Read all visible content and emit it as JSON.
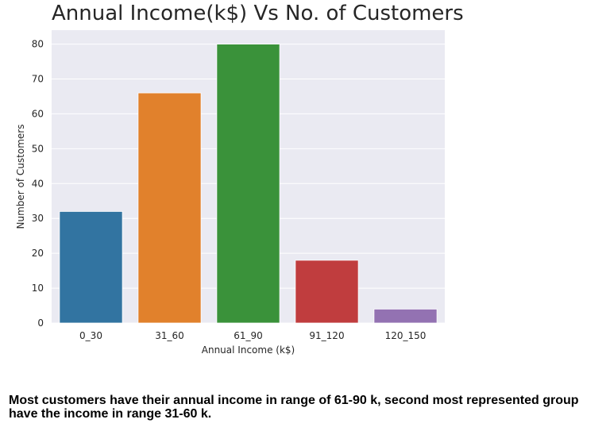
{
  "chart_data": {
    "type": "bar",
    "title": "Annual Income(k$) Vs No. of Customers",
    "xlabel": "Annual Income (k$)",
    "ylabel": "Number of Customers",
    "categories": [
      "0_30",
      "31_60",
      "61_90",
      "91_120",
      "120_150"
    ],
    "values": [
      32,
      66,
      80,
      18,
      4
    ],
    "colors": [
      "#3274a1",
      "#e1812c",
      "#3a923a",
      "#c03d3e",
      "#9372b2"
    ],
    "ylim": [
      0,
      84
    ],
    "yticks": [
      0,
      10,
      20,
      30,
      40,
      50,
      60,
      70,
      80
    ],
    "grid": true,
    "background": "#eaeaf2"
  },
  "caption": "Most customers have their annual income in range of 61-90 k, second most represented group have the income in range 31-60 k."
}
